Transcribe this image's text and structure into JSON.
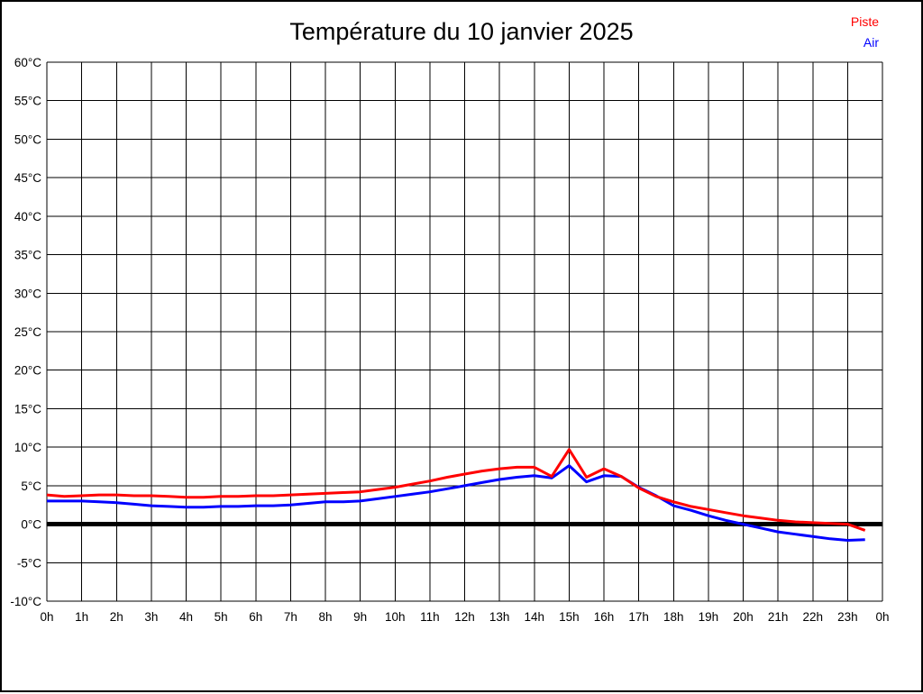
{
  "legend": {
    "items": [
      {
        "label": "Piste",
        "color": "#ff0000"
      },
      {
        "label": "Air",
        "color": "#0000ff"
      }
    ]
  },
  "chart_data": {
    "type": "line",
    "title": "Température du 10 janvier 2025",
    "xlabel": "",
    "ylabel": "",
    "x_unit": "hours",
    "y_unit": "°C",
    "xlim": [
      0,
      24
    ],
    "ylim": [
      -10,
      60
    ],
    "grid": true,
    "legend_position": "top-right",
    "x_ticks": [
      0,
      1,
      2,
      3,
      4,
      5,
      6,
      7,
      8,
      9,
      10,
      11,
      12,
      13,
      14,
      15,
      16,
      17,
      18,
      19,
      20,
      21,
      22,
      23,
      24
    ],
    "x_tick_labels": [
      "0h",
      "1h",
      "2h",
      "3h",
      "4h",
      "5h",
      "6h",
      "7h",
      "8h",
      "9h",
      "10h",
      "11h",
      "12h",
      "13h",
      "14h",
      "15h",
      "16h",
      "17h",
      "18h",
      "19h",
      "20h",
      "21h",
      "22h",
      "23h",
      "0h"
    ],
    "y_ticks": [
      -10,
      -5,
      0,
      5,
      10,
      15,
      20,
      25,
      30,
      35,
      40,
      45,
      50,
      55,
      60
    ],
    "y_tick_labels": [
      "-10°C",
      "-5°C",
      "0°C",
      "5°C",
      "10°C",
      "15°C",
      "20°C",
      "25°C",
      "30°C",
      "35°C",
      "40°C",
      "45°C",
      "50°C",
      "55°C",
      "60°C"
    ],
    "zero_line": {
      "value": 0,
      "color": "#000000",
      "width": 5
    },
    "x": [
      0,
      0.5,
      1,
      1.5,
      2,
      2.5,
      3,
      3.5,
      4,
      4.5,
      5,
      5.5,
      6,
      6.5,
      7,
      7.5,
      8,
      8.5,
      9,
      9.5,
      10,
      10.5,
      11,
      11.5,
      12,
      12.5,
      13,
      13.5,
      14,
      14.5,
      15,
      15.5,
      16,
      16.5,
      17,
      17.5,
      18,
      18.5,
      19,
      19.5,
      20,
      20.5,
      21,
      21.5,
      22,
      22.5,
      23,
      23.5
    ],
    "series": [
      {
        "name": "Air",
        "color": "#0000ff",
        "values": [
          3.0,
          3.0,
          3.0,
          2.9,
          2.8,
          2.6,
          2.4,
          2.3,
          2.2,
          2.2,
          2.3,
          2.3,
          2.4,
          2.4,
          2.5,
          2.7,
          2.9,
          2.9,
          3.0,
          3.3,
          3.6,
          3.9,
          4.2,
          4.6,
          5.0,
          5.4,
          5.8,
          6.1,
          6.3,
          6.0,
          7.6,
          5.5,
          6.3,
          6.2,
          4.8,
          3.7,
          2.4,
          1.8,
          1.1,
          0.5,
          0.0,
          -0.5,
          -1.0,
          -1.3,
          -1.6,
          -1.9,
          -2.1,
          -2.0
        ]
      },
      {
        "name": "Piste",
        "color": "#ff0000",
        "values": [
          3.8,
          3.6,
          3.7,
          3.8,
          3.8,
          3.7,
          3.7,
          3.6,
          3.5,
          3.5,
          3.6,
          3.6,
          3.7,
          3.7,
          3.8,
          3.9,
          4.0,
          4.1,
          4.2,
          4.5,
          4.8,
          5.2,
          5.6,
          6.1,
          6.5,
          6.9,
          7.2,
          7.4,
          7.4,
          6.2,
          9.7,
          6.1,
          7.2,
          6.2,
          4.7,
          3.6,
          2.9,
          2.3,
          1.9,
          1.5,
          1.1,
          0.8,
          0.5,
          0.3,
          0.2,
          0.1,
          0.0,
          -0.8
        ]
      }
    ]
  }
}
